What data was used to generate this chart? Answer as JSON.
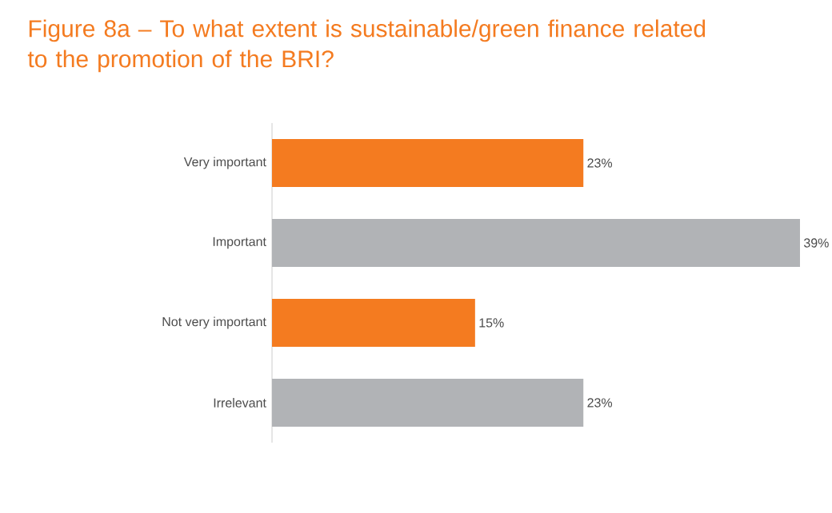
{
  "chart_data": {
    "type": "bar",
    "orientation": "horizontal",
    "title": "Figure 8a – To what extent is sustainable/green finance related to the promotion of the BRI?",
    "categories": [
      "Very important",
      "Important",
      "Not very important",
      "Irrelevant"
    ],
    "values": [
      23,
      39,
      15,
      23
    ],
    "colors": [
      "#f47b20",
      "#b1b3b6",
      "#f47b20",
      "#b1b3b6"
    ],
    "value_labels": [
      "23%",
      "39%",
      "15%",
      "23%"
    ]
  }
}
